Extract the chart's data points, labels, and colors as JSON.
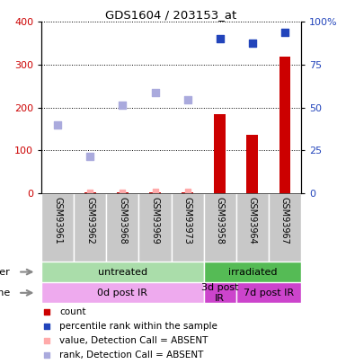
{
  "title": "GDS1604 / 203153_at",
  "samples": [
    "GSM93961",
    "GSM93962",
    "GSM93968",
    "GSM93969",
    "GSM93973",
    "GSM93958",
    "GSM93964",
    "GSM93967"
  ],
  "count_values": [
    0,
    2,
    1,
    2,
    1,
    185,
    137,
    318
  ],
  "rank_values_pct": [
    null,
    null,
    null,
    null,
    null,
    90,
    87.5,
    93.75
  ],
  "rank_absent_pct": [
    40,
    21.25,
    51.25,
    58.75,
    54.5,
    null,
    null,
    null
  ],
  "value_absent_left": [
    0,
    2,
    2,
    3,
    3,
    null,
    null,
    null
  ],
  "ylim_left": [
    0,
    400
  ],
  "ylim_right": [
    0,
    100
  ],
  "yticks_left": [
    0,
    100,
    200,
    300,
    400
  ],
  "yticks_right": [
    0,
    25,
    50,
    75,
    100
  ],
  "yticklabels_left": [
    "0",
    "100",
    "200",
    "300",
    "400"
  ],
  "yticklabels_right": [
    "0",
    "25",
    "50",
    "75",
    "100%"
  ],
  "color_count": "#cc0000",
  "color_rank": "#2244bb",
  "color_value_absent": "#ffaaaa",
  "color_rank_absent": "#aaaadd",
  "groups_other": [
    {
      "label": "untreated",
      "start": 0,
      "end": 5,
      "color": "#aaddaa"
    },
    {
      "label": "irradiated",
      "start": 5,
      "end": 8,
      "color": "#55bb55"
    }
  ],
  "groups_time": [
    {
      "label": "0d post IR",
      "start": 0,
      "end": 5,
      "color": "#eeaaee"
    },
    {
      "label": "3d post\nIR",
      "start": 5,
      "end": 6,
      "color": "#cc44cc"
    },
    {
      "label": "7d post IR",
      "start": 6,
      "end": 8,
      "color": "#cc44cc"
    }
  ],
  "legend_items": [
    {
      "color": "#cc0000",
      "label": "count"
    },
    {
      "color": "#2244bb",
      "label": "percentile rank within the sample"
    },
    {
      "color": "#ffaaaa",
      "label": "value, Detection Call = ABSENT"
    },
    {
      "color": "#aaaadd",
      "label": "rank, Detection Call = ABSENT"
    }
  ],
  "bar_width": 0.35
}
